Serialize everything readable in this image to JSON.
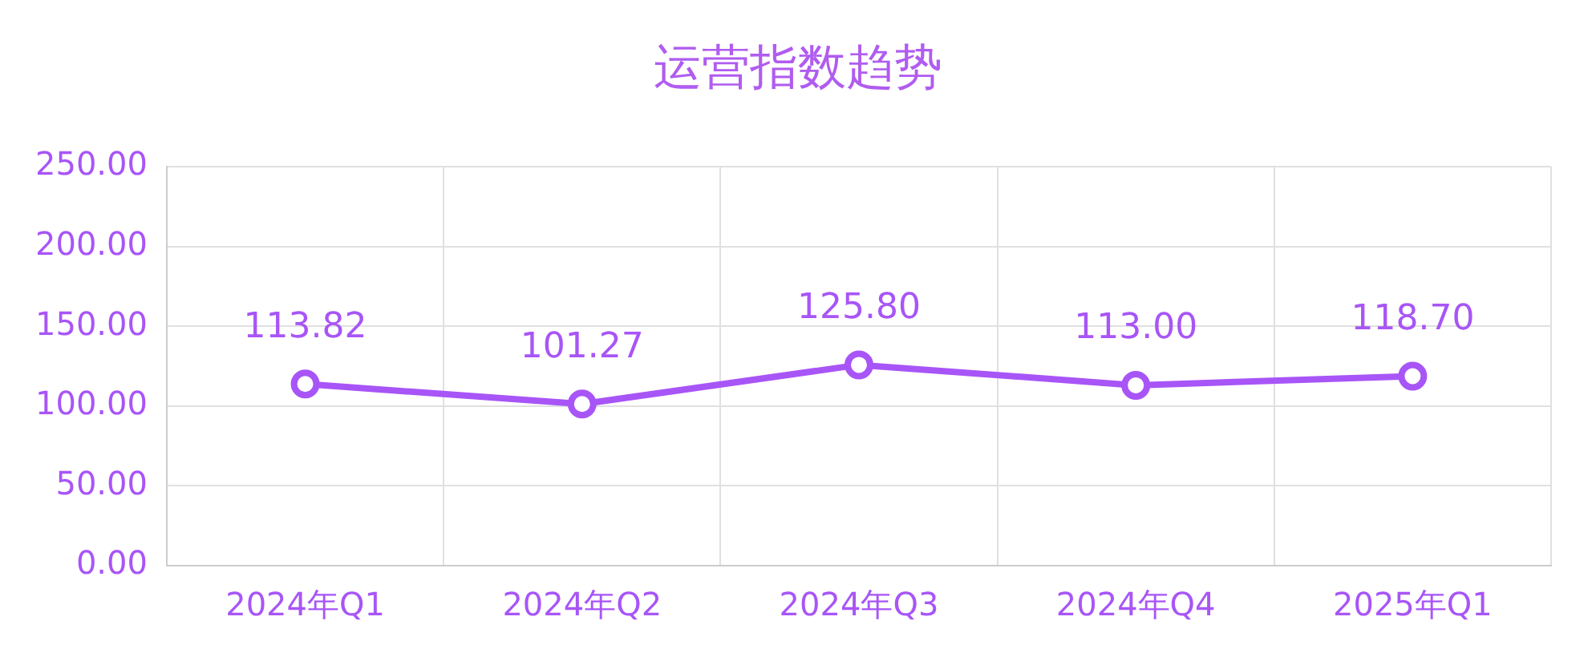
{
  "chart_data": {
    "type": "line",
    "title": "运营指数趋势",
    "categories": [
      "2024年Q1",
      "2024年Q2",
      "2024年Q3",
      "2024年Q4",
      "2025年Q1"
    ],
    "series": [
      {
        "color": "#a855f7",
        "values": [
          113.82,
          101.27,
          125.8,
          113.0,
          118.7
        ],
        "value_labels": [
          "113.82",
          "101.27",
          "125.80",
          "113.00",
          "118.70"
        ]
      }
    ],
    "ylim": [
      0,
      250
    ],
    "yticks": [
      {
        "value": 0,
        "label": "0.00"
      },
      {
        "value": 50,
        "label": "50.00"
      },
      {
        "value": 100,
        "label": "100.00"
      },
      {
        "value": 150,
        "label": "150.00"
      },
      {
        "value": 200,
        "label": "200.00"
      },
      {
        "value": 250,
        "label": "250.00"
      }
    ],
    "grid": true,
    "marker": "circle",
    "line_style": "solid",
    "legend": false
  }
}
